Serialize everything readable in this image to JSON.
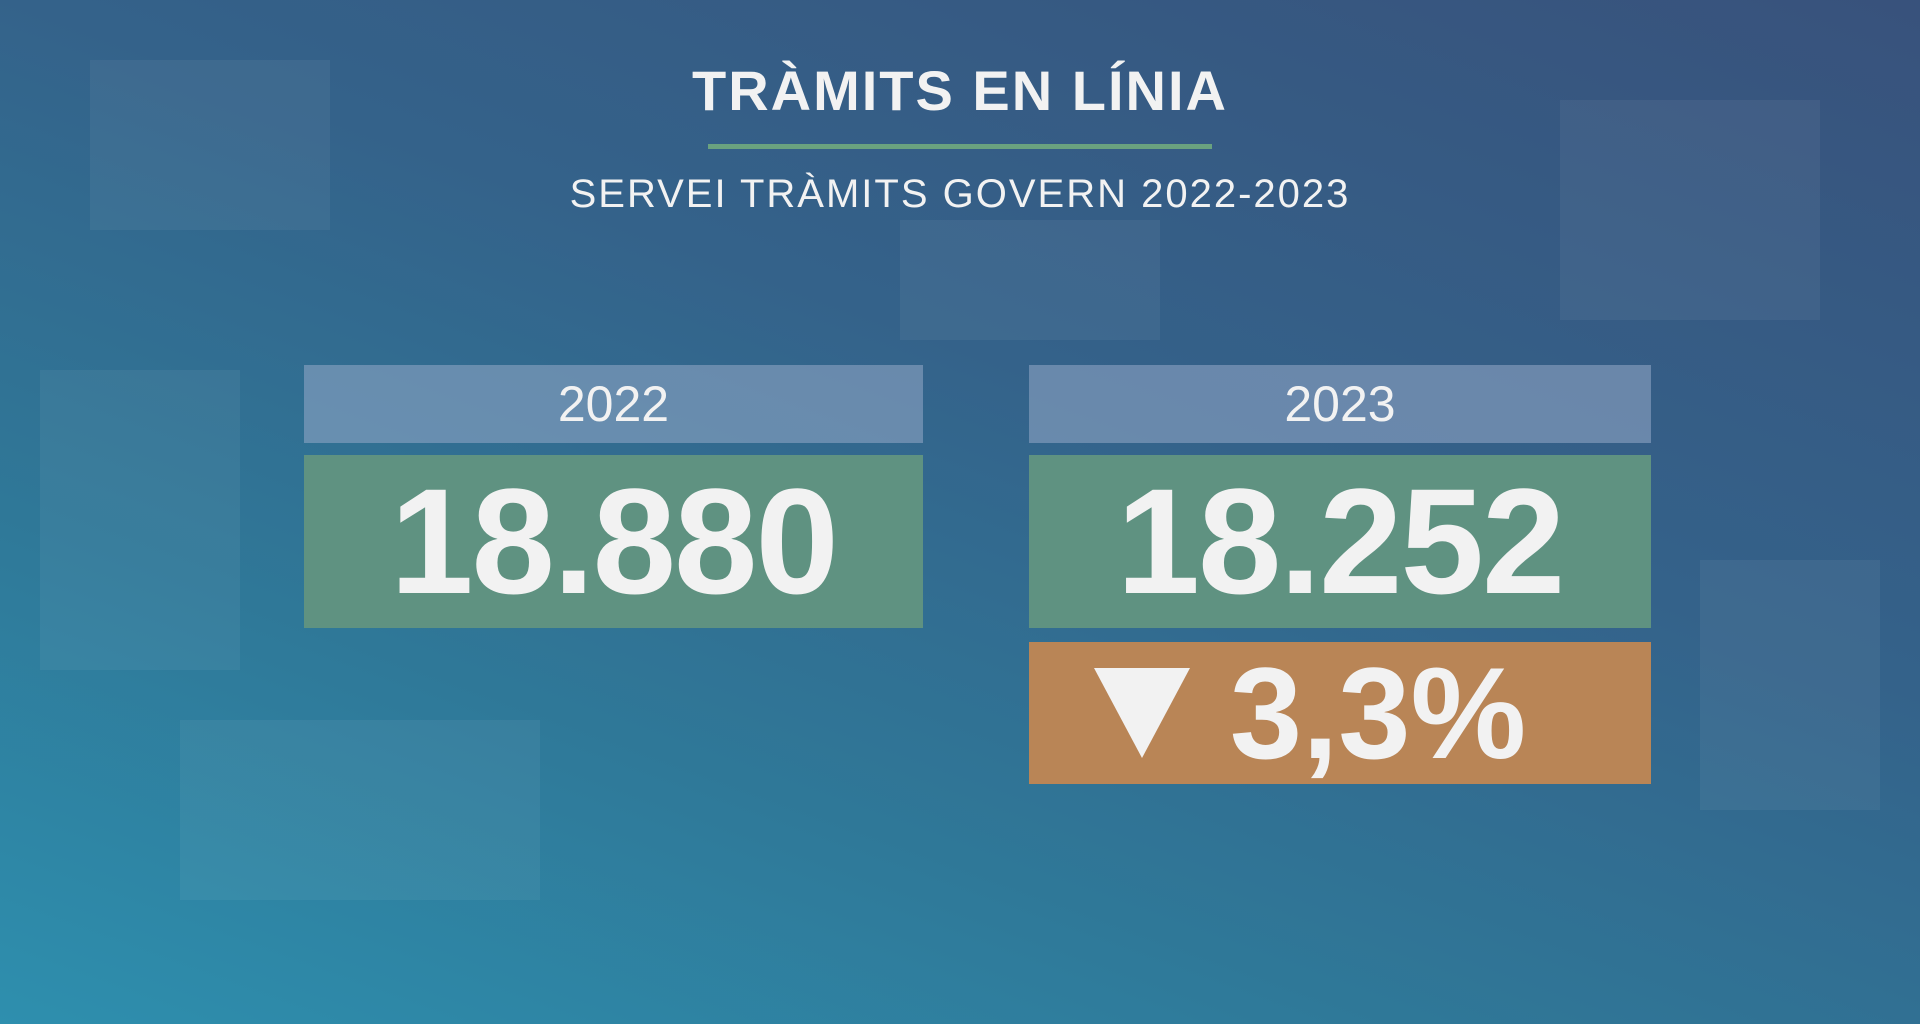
{
  "header": {
    "title": "TRÀMITS EN LÍNIA",
    "subtitle": "SERVEI TRÀMITS GOVERN 2022-2023"
  },
  "cards": [
    {
      "year": "2022",
      "value": "18.880"
    },
    {
      "year": "2023",
      "value": "18.252",
      "change": "3,3%"
    }
  ]
}
